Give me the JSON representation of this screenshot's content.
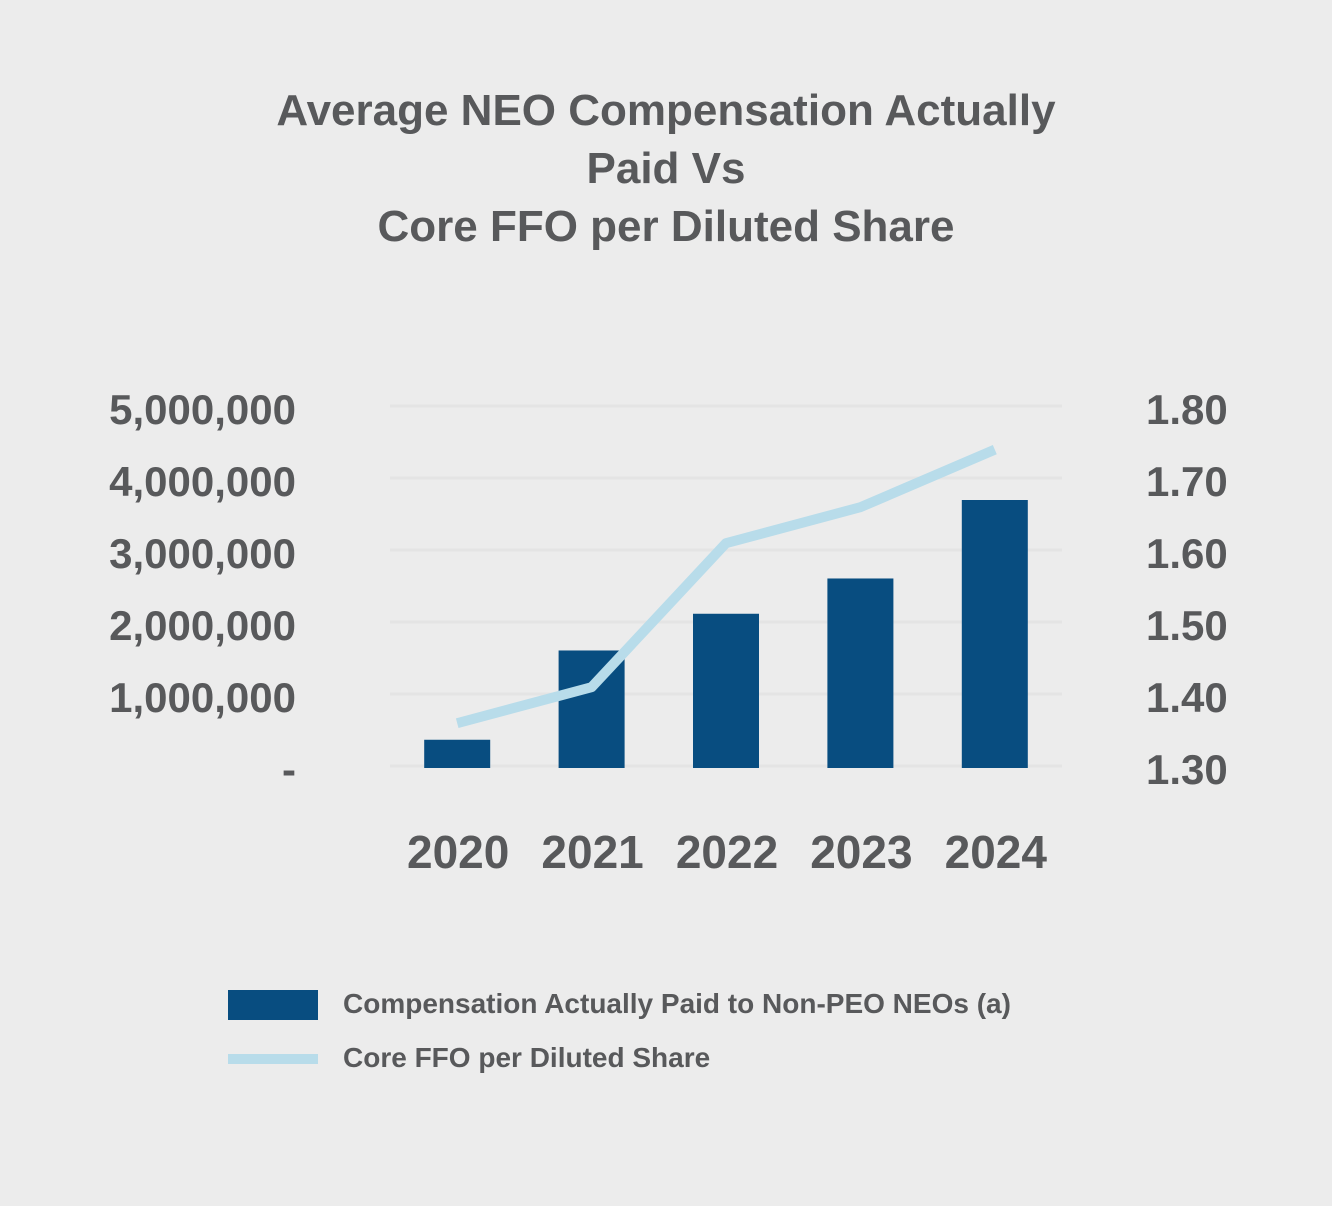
{
  "colors": {
    "background": "#ececec",
    "text": "#58595b",
    "bar": "#084d80",
    "line": "#b8dcea",
    "grid": "#e4e4e4"
  },
  "chart_data": {
    "type": "bar",
    "title_lines": [
      "Average NEO Compensation Actually",
      "Paid Vs",
      "Core FFO per Diluted Share"
    ],
    "categories": [
      "2020",
      "2021",
      "2022",
      "2023",
      "2024"
    ],
    "series": [
      {
        "name": "Compensation Actually Paid to Non-PEO NEOs (a)",
        "type": "bar",
        "axis": "left",
        "values": [
          420000,
          1660000,
          2170000,
          2660000,
          3750000
        ]
      },
      {
        "name": "Core FFO per Diluted Share",
        "type": "line",
        "axis": "right",
        "values": [
          1.365,
          1.415,
          1.615,
          1.665,
          1.745
        ]
      }
    ],
    "left_axis": {
      "ylim": [
        0,
        5000000
      ],
      "ticks": [
        0,
        1000000,
        2000000,
        3000000,
        4000000,
        5000000
      ],
      "tick_labels": [
        "-",
        "1,000,000",
        "2,000,000",
        "3,000,000",
        "4,000,000",
        "5,000,000"
      ]
    },
    "right_axis": {
      "ylim": [
        1.3,
        1.8
      ],
      "ticks": [
        1.3,
        1.4,
        1.5,
        1.6,
        1.7,
        1.8
      ],
      "tick_labels": [
        "1.30",
        "1.40",
        "1.50",
        "1.60",
        "1.70",
        "1.80"
      ]
    },
    "grid": true,
    "legend_position": "bottom"
  }
}
